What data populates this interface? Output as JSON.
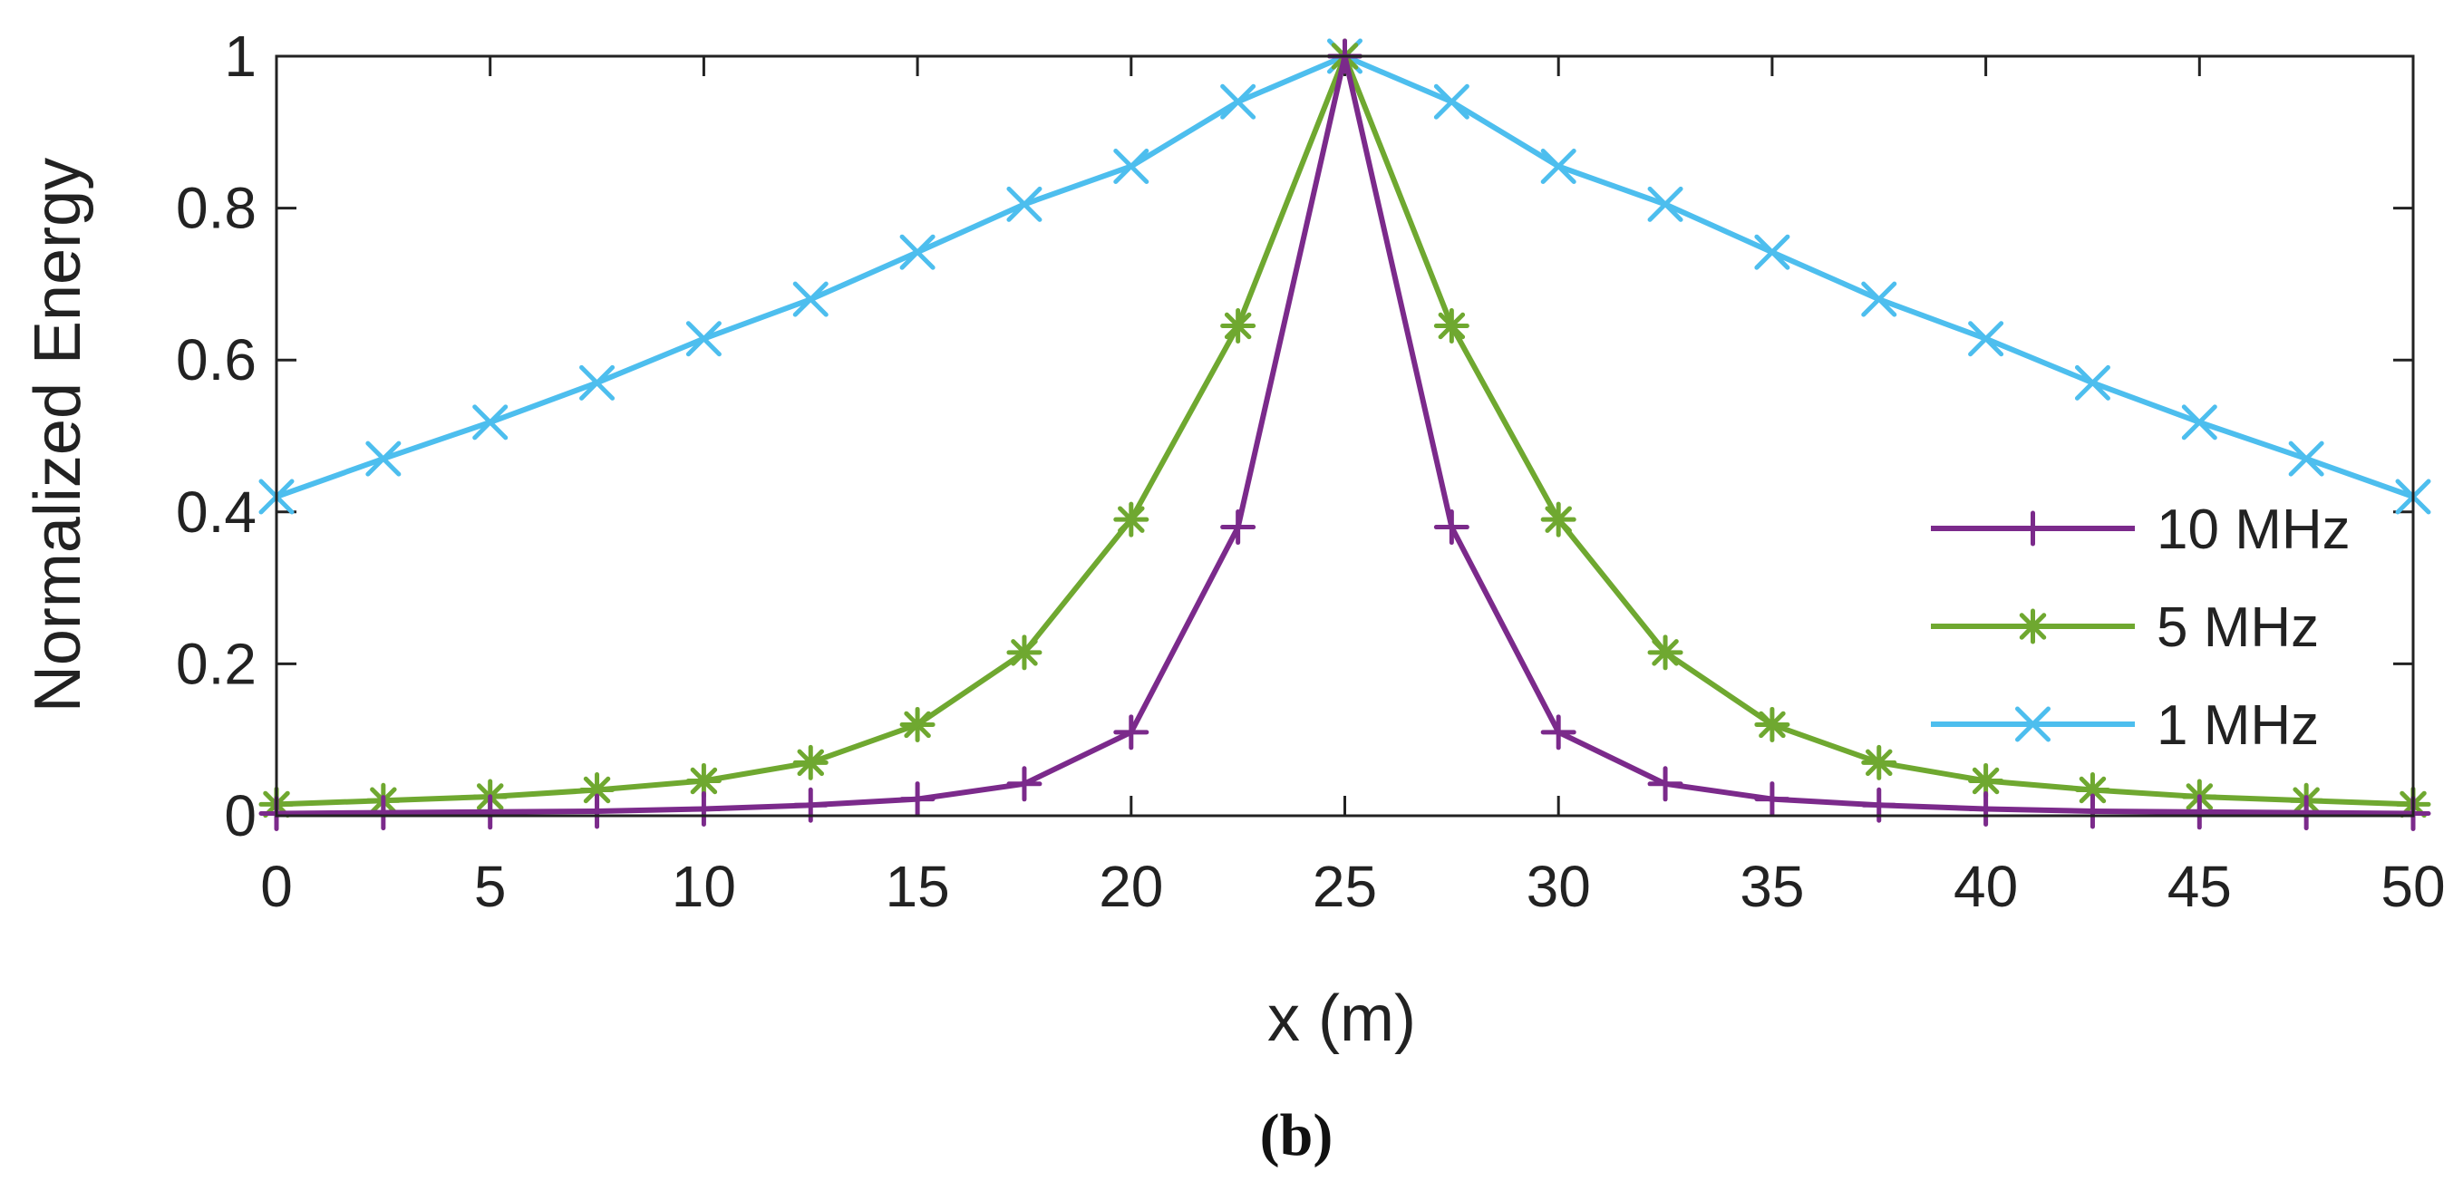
{
  "chart_data": {
    "type": "line",
    "title": "",
    "xlabel": "x (m)",
    "ylabel": "Normalized Energy",
    "caption": "(b)",
    "xlim": [
      0,
      50
    ],
    "ylim": [
      0,
      1
    ],
    "xticks": [
      0,
      5,
      10,
      15,
      20,
      25,
      30,
      35,
      40,
      45,
      50
    ],
    "yticks": [
      0,
      0.2,
      0.4,
      0.6,
      0.8,
      1
    ],
    "ytick_labels": [
      "0",
      "0.2",
      "0.4",
      "0.6",
      "0.8",
      "1"
    ],
    "grid": false,
    "legend_position": "right",
    "x": [
      0,
      2.5,
      5,
      7.5,
      10,
      12.5,
      15,
      17.5,
      20,
      22.5,
      25,
      27.5,
      30,
      32.5,
      35,
      37.5,
      40,
      42.5,
      45,
      47.5,
      50
    ],
    "series": [
      {
        "name": "10 MHz",
        "color": "#7B2A8B",
        "marker": "plus",
        "values": [
          0.003,
          0.004,
          0.005,
          0.006,
          0.009,
          0.014,
          0.022,
          0.042,
          0.11,
          0.38,
          1.0,
          0.38,
          0.11,
          0.042,
          0.022,
          0.014,
          0.009,
          0.006,
          0.005,
          0.004,
          0.003
        ]
      },
      {
        "name": "5 MHz",
        "color": "#6FA830",
        "marker": "asterisk",
        "values": [
          0.015,
          0.02,
          0.025,
          0.034,
          0.046,
          0.07,
          0.12,
          0.215,
          0.39,
          0.645,
          1.0,
          0.645,
          0.39,
          0.215,
          0.12,
          0.07,
          0.046,
          0.034,
          0.025,
          0.02,
          0.015
        ]
      },
      {
        "name": "1 MHz",
        "color": "#4DBEEE",
        "marker": "x",
        "values": [
          0.42,
          0.47,
          0.518,
          0.57,
          0.628,
          0.68,
          0.742,
          0.805,
          0.855,
          0.94,
          1.0,
          0.94,
          0.855,
          0.805,
          0.742,
          0.68,
          0.628,
          0.57,
          0.518,
          0.47,
          0.42
        ]
      }
    ]
  }
}
